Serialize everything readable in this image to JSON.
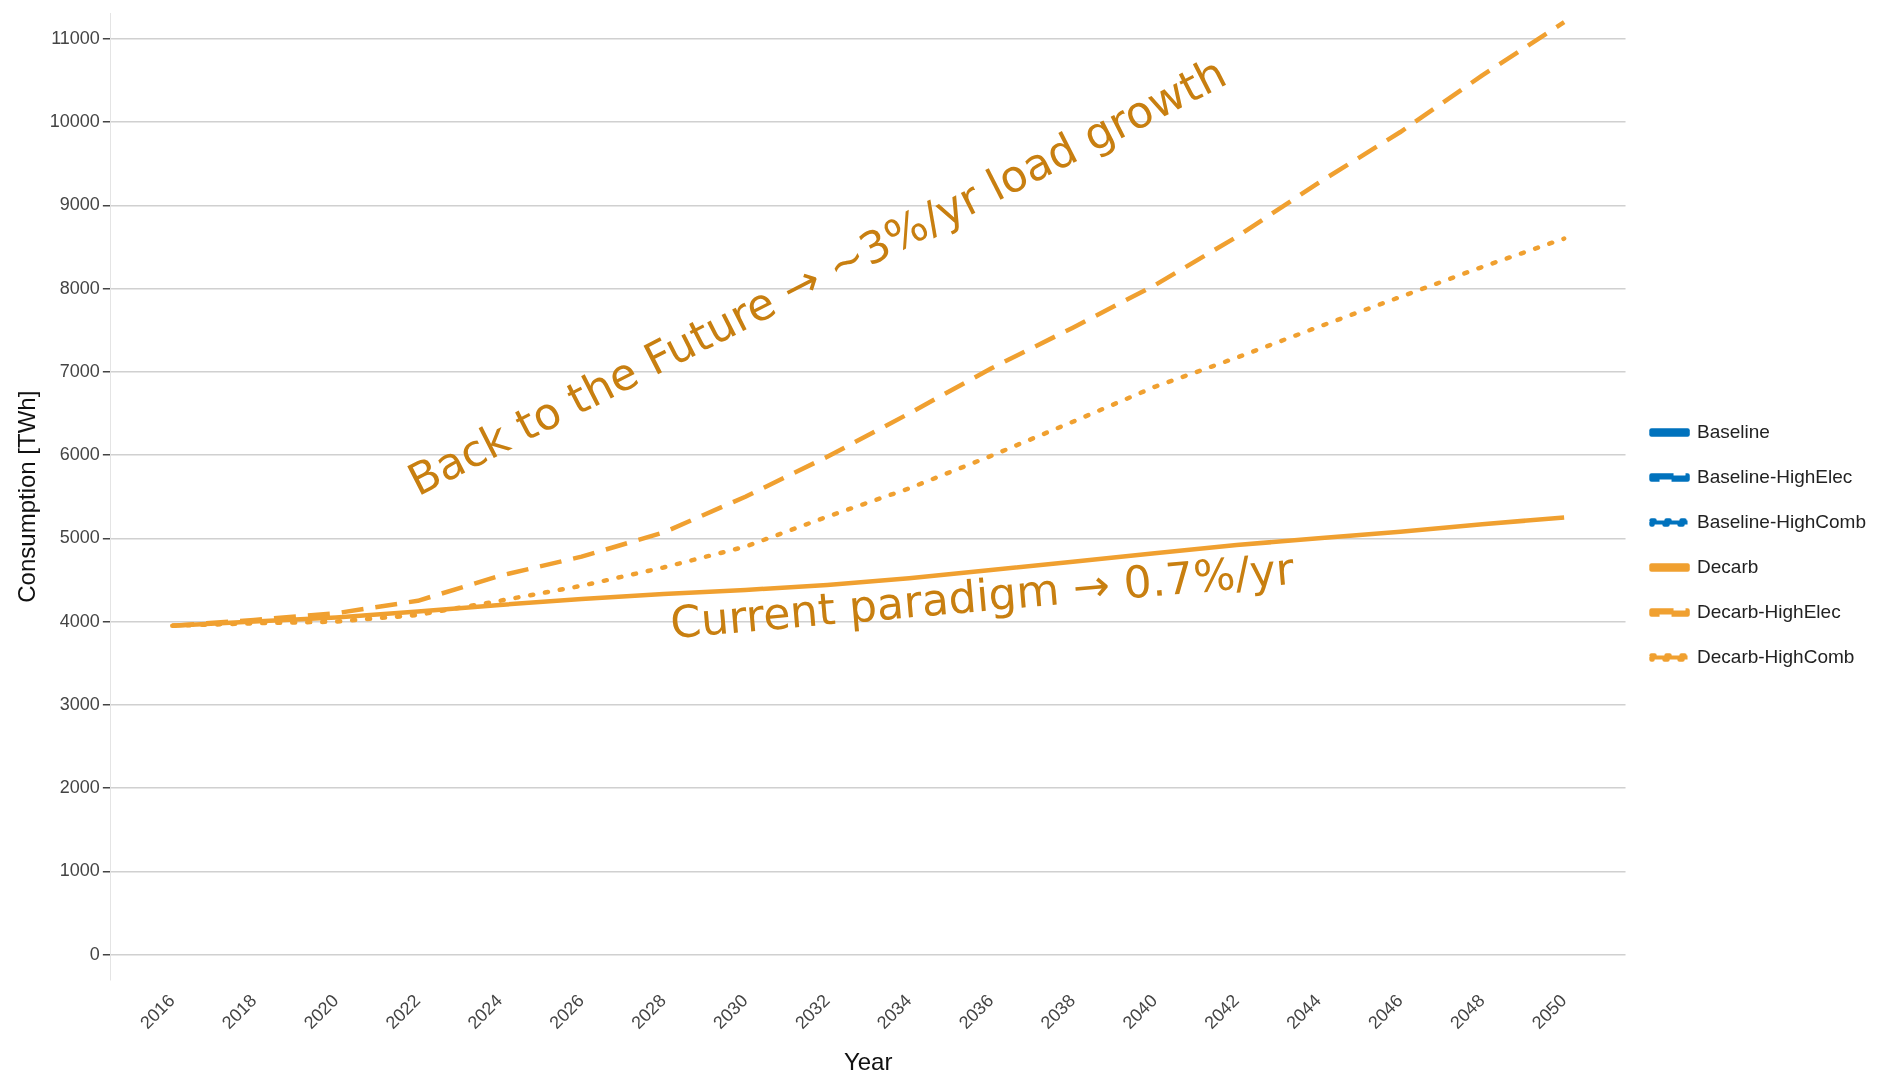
{
  "chart_data": {
    "type": "line",
    "xlabel": "Year",
    "ylabel": "Consumption [TWh]",
    "x": [
      2016,
      2018,
      2020,
      2022,
      2024,
      2026,
      2028,
      2030,
      2032,
      2034,
      2036,
      2038,
      2040,
      2042,
      2044,
      2046,
      2048,
      2050
    ],
    "xlim": [
      2014.5,
      2051.5
    ],
    "xticks": [
      2016,
      2018,
      2020,
      2022,
      2024,
      2026,
      2028,
      2030,
      2032,
      2034,
      2036,
      2038,
      2040,
      2042,
      2044,
      2046,
      2048,
      2050
    ],
    "ylim": [
      -300,
      11300
    ],
    "yticks": [
      0,
      1000,
      2000,
      3000,
      4000,
      5000,
      6000,
      7000,
      8000,
      9000,
      10000,
      11000
    ],
    "grid": "y",
    "legend": "right",
    "marker": "none",
    "series": [
      {
        "name": "Baseline",
        "color": "#0072bd",
        "line_style": "solid",
        "values": [
          null,
          null,
          null,
          null,
          null,
          null,
          null,
          null,
          null,
          null,
          null,
          null,
          null,
          null,
          null,
          null,
          null,
          null
        ]
      },
      {
        "name": "Baseline-HighElec",
        "color": "#0072bd",
        "line_style": "dashed",
        "values": [
          null,
          null,
          null,
          null,
          null,
          null,
          null,
          null,
          null,
          null,
          null,
          null,
          null,
          null,
          null,
          null,
          null,
          null
        ]
      },
      {
        "name": "Baseline-HighComb",
        "color": "#0072bd",
        "line_style": "dotted",
        "values": [
          null,
          null,
          null,
          null,
          null,
          null,
          null,
          null,
          null,
          null,
          null,
          null,
          null,
          null,
          null,
          null,
          null,
          null
        ]
      },
      {
        "name": "Decarb",
        "color": "#f0a030",
        "line_style": "solid",
        "values": [
          3950,
          4000,
          4050,
          4120,
          4200,
          4270,
          4330,
          4380,
          4440,
          4520,
          4620,
          4720,
          4820,
          4920,
          5000,
          5080,
          5170,
          5250
        ]
      },
      {
        "name": "Decarb-HighElec",
        "color": "#f0a030",
        "line_style": "dashed",
        "values": [
          3950,
          4020,
          4100,
          4250,
          4550,
          4780,
          5070,
          5500,
          5980,
          6500,
          7040,
          7530,
          8040,
          8620,
          9270,
          9880,
          10560,
          11200
        ]
      },
      {
        "name": "Decarb-HighComb",
        "color": "#f0a030",
        "line_style": "dotted",
        "values": [
          3950,
          3980,
          4000,
          4080,
          4250,
          4430,
          4650,
          4900,
          5260,
          5600,
          5990,
          6400,
          6820,
          7170,
          7540,
          7900,
          8260,
          8600
        ]
      }
    ],
    "annotations": [
      "Back to the Future → ~3%/yr load growth",
      "Current paradigm → 0.7%/yr"
    ]
  }
}
